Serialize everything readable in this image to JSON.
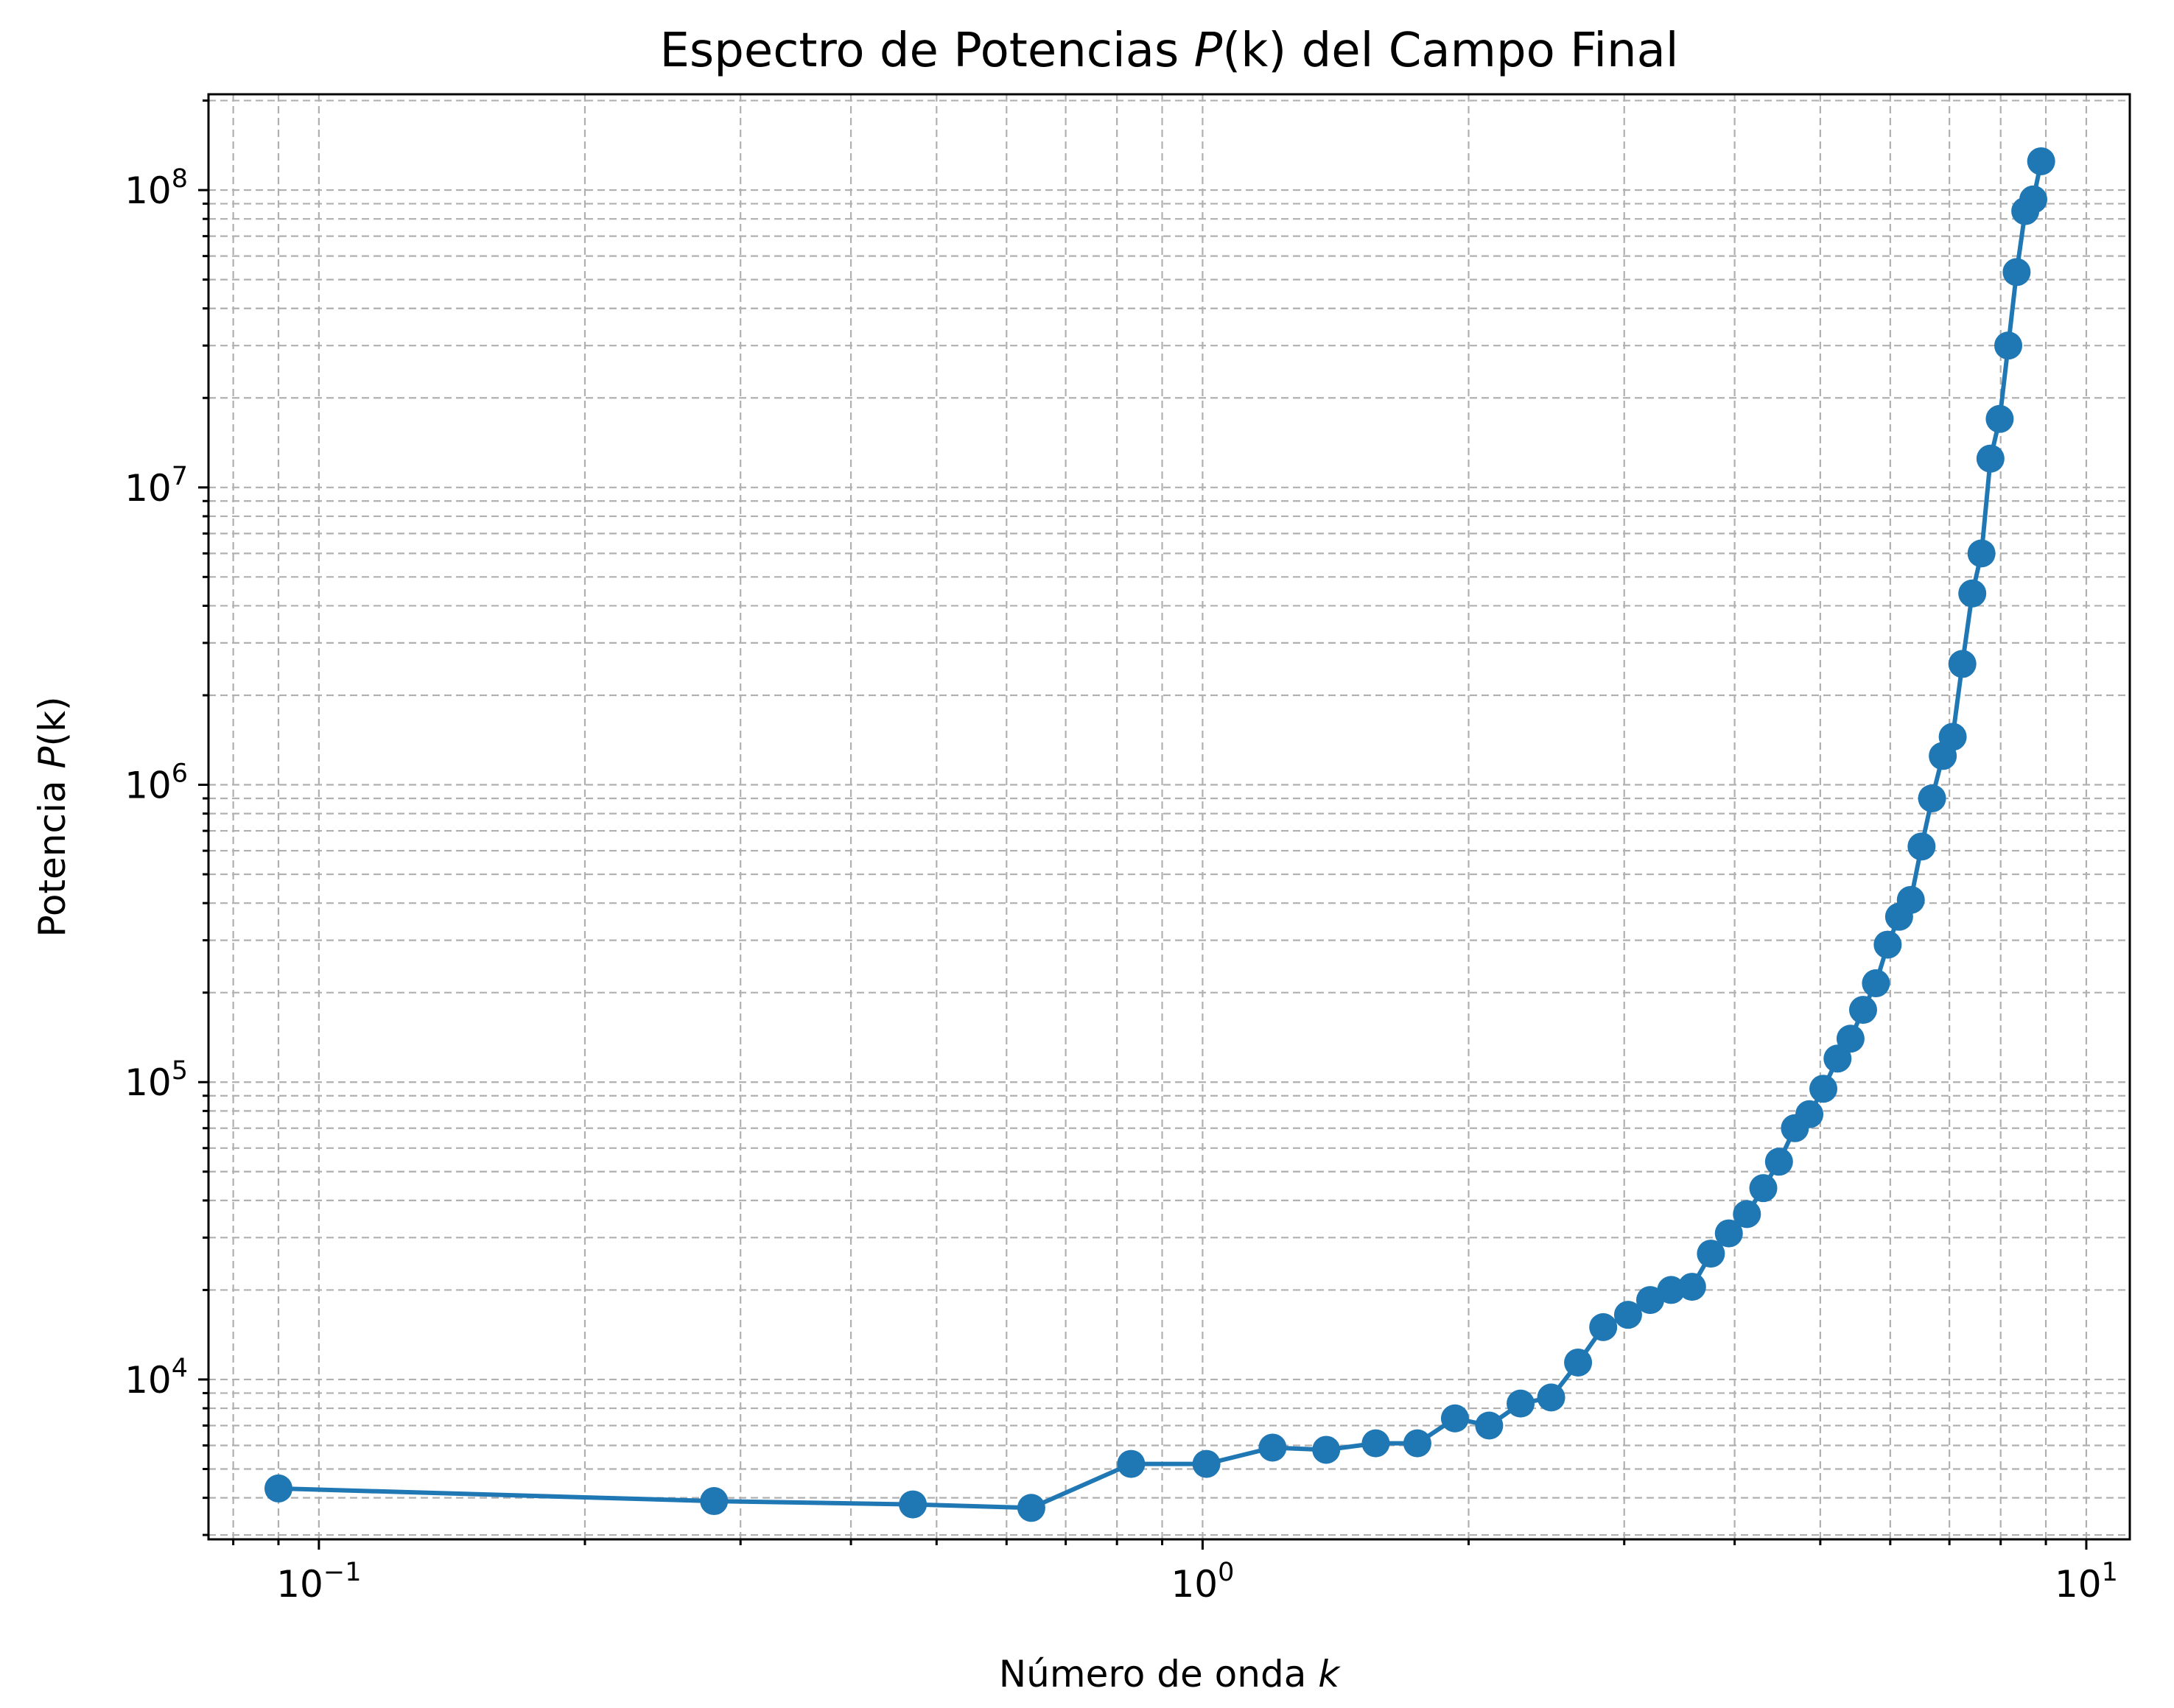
{
  "chart_data": {
    "type": "line",
    "title_prefix": "Espectro de Potencias ",
    "title_var": "P",
    "title_args": "(k)",
    "title_suffix": " del Campo Final",
    "xlabel_prefix": "Número de onda ",
    "xlabel_var": "k",
    "ylabel_prefix": "Potencia ",
    "ylabel_var": "P",
    "ylabel_suffix": "(k)",
    "xscale": "log",
    "yscale": "log",
    "xlim": [
      0.075,
      11.2
    ],
    "ylim": [
      2900,
      210000000
    ],
    "grid": "major and minor, dashed, gray",
    "line_color": "#1f77b4",
    "marker": "circle",
    "x_ticks": [
      {
        "value": 0.1,
        "base": "10",
        "exp": "−1"
      },
      {
        "value": 1,
        "base": "10",
        "exp": "0"
      },
      {
        "value": 10,
        "base": "10",
        "exp": "1"
      }
    ],
    "y_ticks": [
      {
        "value": 10000,
        "base": "10",
        "exp": "4"
      },
      {
        "value": 100000,
        "base": "10",
        "exp": "5"
      },
      {
        "value": 1000000,
        "base": "10",
        "exp": "6"
      },
      {
        "value": 10000000,
        "base": "10",
        "exp": "7"
      },
      {
        "value": 100000000,
        "base": "10",
        "exp": "8"
      }
    ],
    "series": [
      {
        "x": [
          0.09,
          0.28,
          0.47,
          0.64,
          0.83,
          1.01,
          1.2,
          1.38,
          1.57,
          1.75,
          1.93,
          2.11,
          2.29,
          2.48,
          2.66,
          2.84,
          3.03,
          3.21,
          3.39,
          3.58,
          3.76,
          3.94,
          4.13,
          4.31,
          4.49,
          4.68,
          4.86,
          5.04,
          5.23,
          5.41,
          5.59,
          5.78,
          5.96,
          6.14,
          6.33,
          6.51,
          6.69,
          6.88,
          7.06,
          7.24,
          7.43,
          7.61,
          7.79,
          7.98,
          8.16,
          8.34,
          8.53,
          8.71,
          8.89
        ],
        "y": [
          4300,
          3900,
          3800,
          3700,
          5200,
          5200,
          5900,
          5800,
          6100,
          6100,
          7400,
          7000,
          8300,
          8700,
          11400,
          15000,
          16500,
          18500,
          20000,
          20500,
          26500,
          31000,
          36000,
          44000,
          54000,
          70000,
          78000,
          95000,
          120000,
          140000,
          175000,
          215000,
          290000,
          360000,
          410000,
          620000,
          900000,
          1250000,
          1450000,
          2550000,
          4400000,
          6000000,
          12500000,
          17000000,
          30000000,
          53000000,
          85000000,
          93000000,
          125000000
        ]
      }
    ]
  }
}
